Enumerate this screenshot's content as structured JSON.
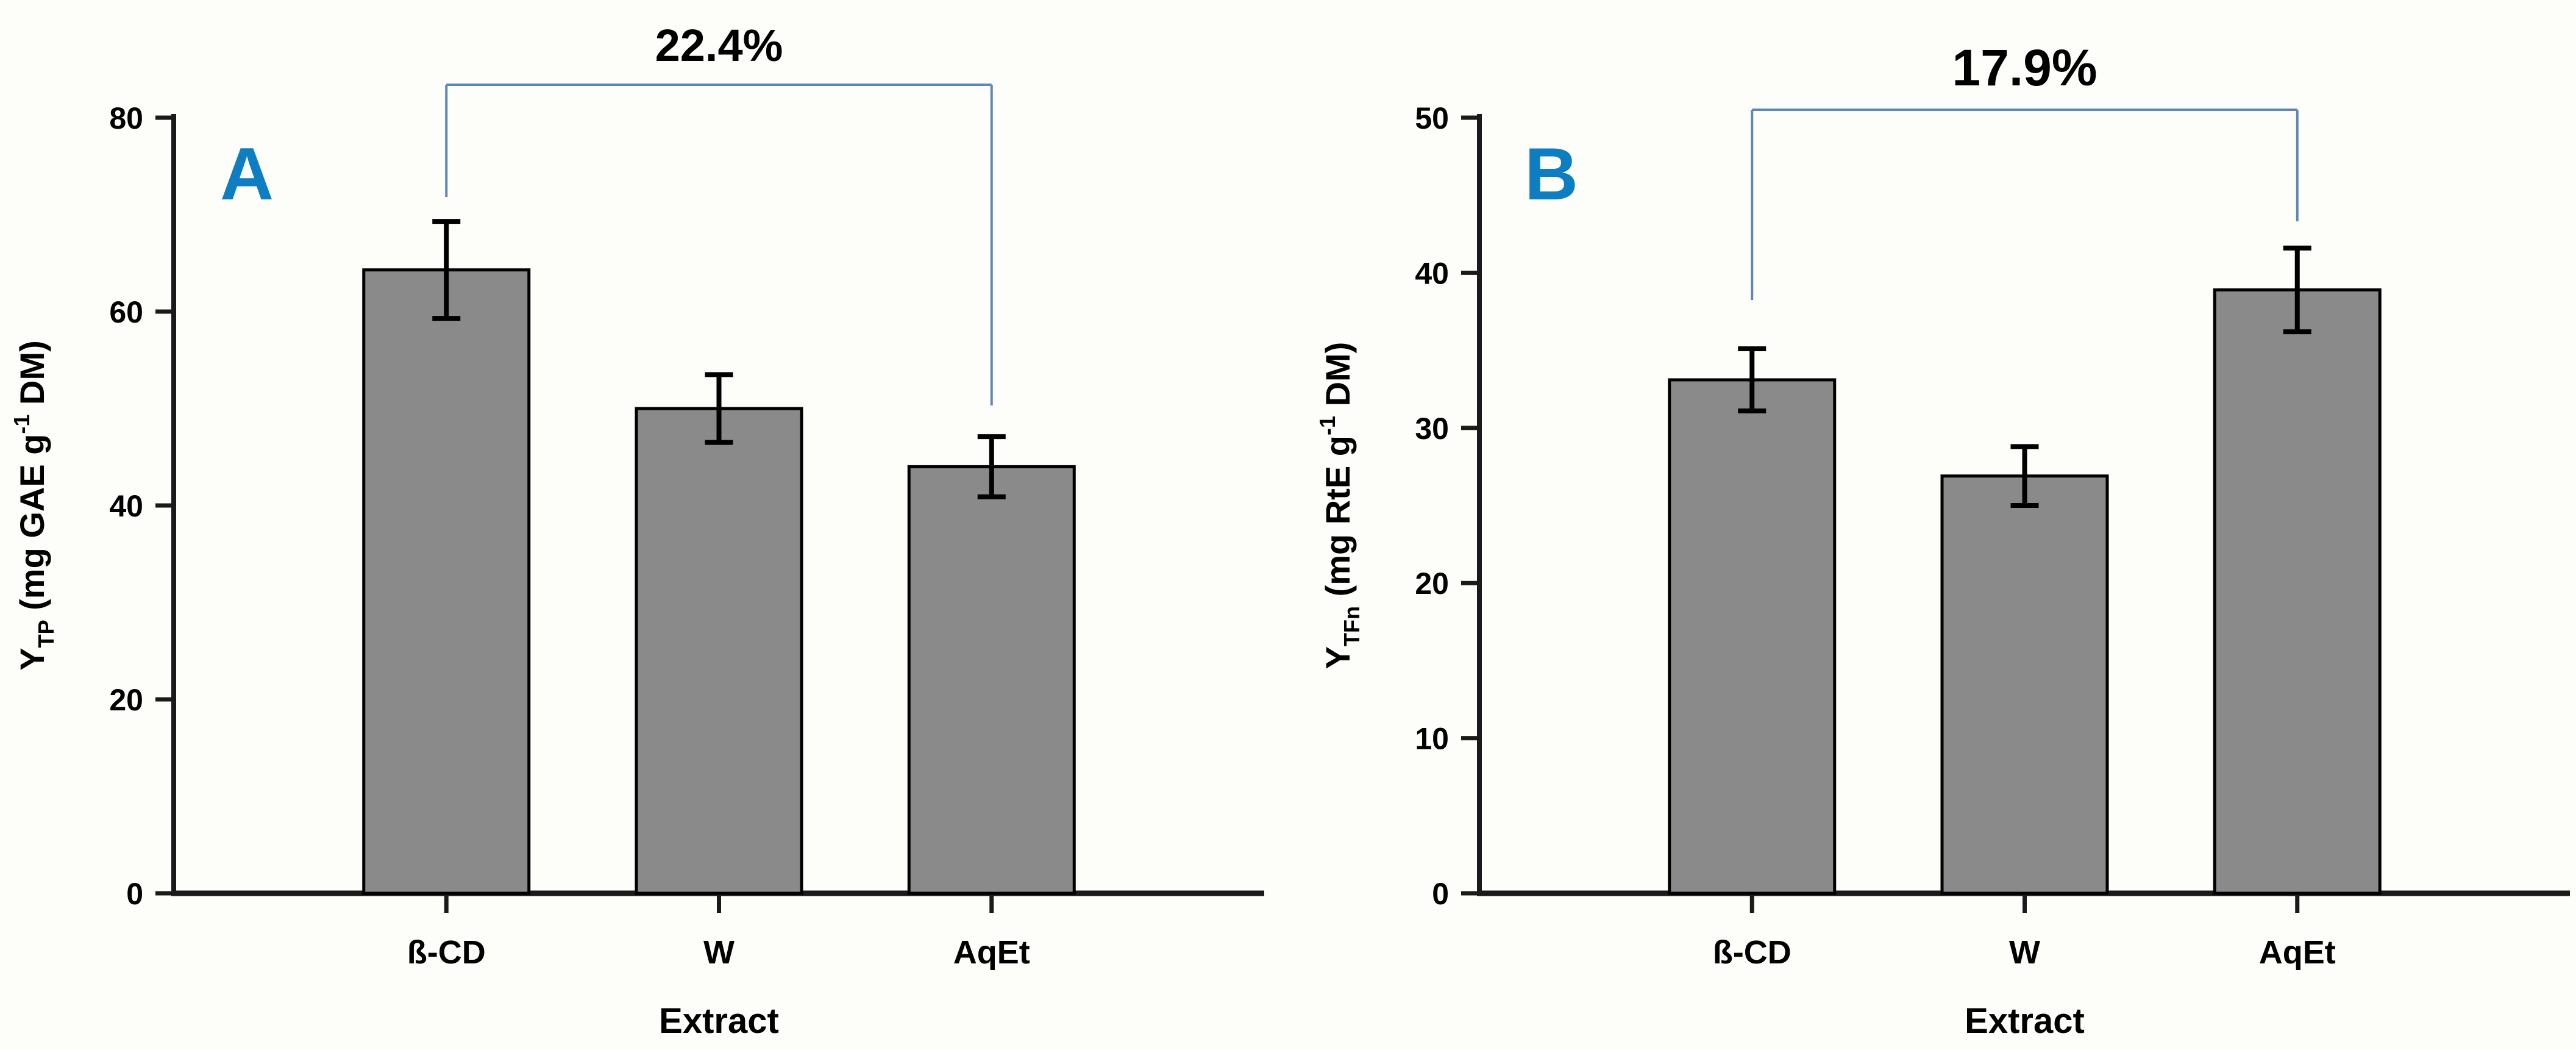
{
  "figure_title": "Dual panel bar chart comparing extract yields",
  "colors": {
    "background": "#fdfdf9",
    "bar_fill": "#8a8a8a",
    "bar_border": "#000000",
    "axis": "#1a1a1a",
    "text": "#000000",
    "bracket_line": "#5f87b5",
    "panel_letter": "#0f7dc2"
  },
  "chart_data": [
    {
      "type": "bar",
      "panel_label": "A",
      "title": "22.4%",
      "categories": [
        "ß-CD",
        "W",
        "AqEt"
      ],
      "values": [
        64.3,
        50.0,
        44.0
      ],
      "errors": [
        5.0,
        3.5,
        3.1
      ],
      "ylim": [
        0,
        80
      ],
      "yticks": [
        0,
        20,
        40,
        60,
        80
      ],
      "xlabel": "Extract",
      "ylabel_text": "YTP (mg GAE g-1 DM)",
      "ylabel_parts": [
        {
          "t": "Y"
        },
        {
          "t": "TP",
          "pos": "sub"
        },
        {
          "t": " (mg GAE g"
        },
        {
          "t": "-1",
          "pos": "sup"
        },
        {
          "t": " DM)"
        }
      ],
      "bracket": {
        "label": "22.4%",
        "from_index": 0,
        "to_index": 2
      },
      "grid": false,
      "legend": null
    },
    {
      "type": "bar",
      "panel_label": "B",
      "title": "17.9%",
      "categories": [
        "ß-CD",
        "W",
        "AqEt"
      ],
      "values": [
        33.1,
        26.9,
        38.9
      ],
      "errors": [
        2.0,
        1.9,
        2.7
      ],
      "ylim": [
        0,
        50
      ],
      "yticks": [
        0,
        10,
        20,
        30,
        40,
        50
      ],
      "xlabel": "Extract",
      "ylabel_text": "YTFn (mg RtE g-1 DM)",
      "ylabel_parts": [
        {
          "t": "Y"
        },
        {
          "t": "TFn",
          "pos": "sub"
        },
        {
          "t": " (mg RtE g"
        },
        {
          "t": "-1",
          "pos": "sup"
        },
        {
          "t": " DM)"
        }
      ],
      "bracket": {
        "label": "17.9%",
        "from_index": 0,
        "to_index": 2
      },
      "grid": false,
      "legend": null
    }
  ]
}
